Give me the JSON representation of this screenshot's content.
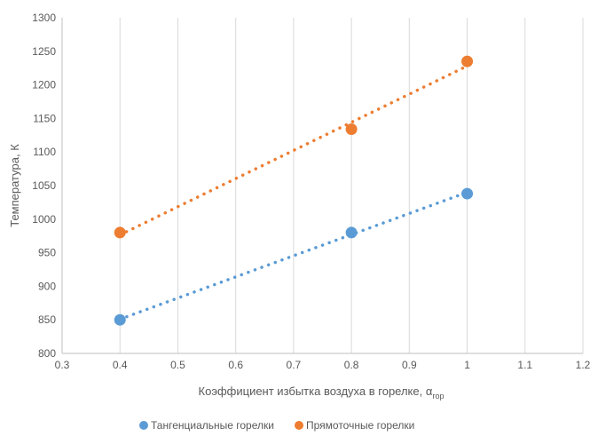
{
  "chart_data": {
    "type": "scatter",
    "title": "",
    "xlabel": "Коэффициент избытка воздуха в горелке, α",
    "xlabel_subscript": "гор",
    "ylabel": "Температура, К",
    "xlim": [
      0.3,
      1.2
    ],
    "ylim": [
      800,
      1300
    ],
    "x_ticks": [
      0.3,
      0.4,
      0.5,
      0.6,
      0.7,
      0.8,
      0.9,
      1.0,
      1.1,
      1.2
    ],
    "x_tick_labels": [
      "0.3",
      "0.4",
      "0.5",
      "0.6",
      "0.7",
      "0.8",
      "0.9",
      "1",
      "1.1",
      "1.2"
    ],
    "y_ticks": [
      800,
      850,
      900,
      950,
      1000,
      1050,
      1100,
      1150,
      1200,
      1250,
      1300
    ],
    "y_tick_labels": [
      "800",
      "850",
      "900",
      "950",
      "1000",
      "1050",
      "1100",
      "1150",
      "1200",
      "1250",
      "1300"
    ],
    "grid": "vertical",
    "legend_position": "bottom",
    "trendline": "linear, dotted",
    "series": [
      {
        "name": "Тангенциальные горелки",
        "color": "#5B9BD5",
        "x": [
          0.4,
          0.8,
          1.0
        ],
        "y": [
          850,
          980,
          1038
        ]
      },
      {
        "name": "Прямоточные горелки",
        "color": "#ED7D31",
        "x": [
          0.4,
          0.8,
          1.0
        ],
        "y": [
          980,
          1134,
          1235
        ]
      }
    ]
  }
}
